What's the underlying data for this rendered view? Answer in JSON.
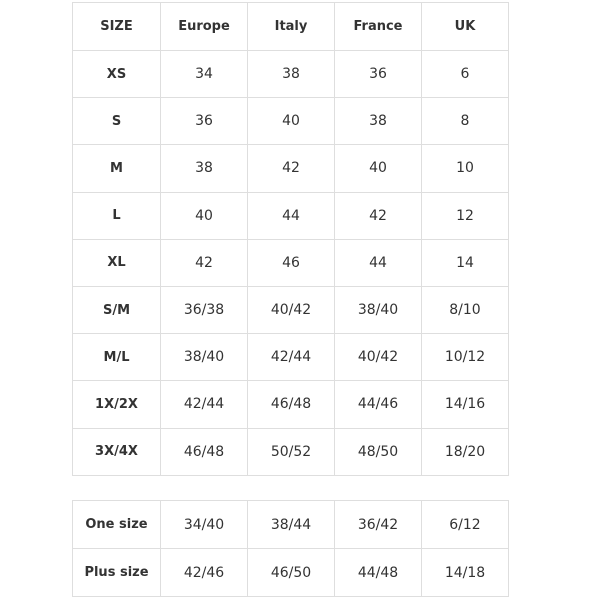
{
  "size_table": {
    "header": [
      "SIZE",
      "Europe",
      "Italy",
      "France",
      "UK"
    ],
    "rows": [
      [
        "XS",
        "34",
        "38",
        "36",
        "6"
      ],
      [
        "S",
        "36",
        "40",
        "38",
        "8"
      ],
      [
        "M",
        "38",
        "42",
        "40",
        "10"
      ],
      [
        "L",
        "40",
        "44",
        "42",
        "12"
      ],
      [
        "XL",
        "42",
        "46",
        "44",
        "14"
      ],
      [
        "S/M",
        "36/38",
        "40/42",
        "38/40",
        "8/10"
      ],
      [
        "M/L",
        "38/40",
        "42/44",
        "40/42",
        "10/12"
      ],
      [
        "1X/2X",
        "42/44",
        "46/48",
        "44/46",
        "14/16"
      ],
      [
        "3X/4X",
        "46/48",
        "50/52",
        "48/50",
        "18/20"
      ]
    ]
  },
  "extra_table": {
    "rows": [
      [
        "One size",
        "34/40",
        "38/44",
        "36/42",
        "6/12"
      ],
      [
        "Plus size",
        "42/46",
        "46/50",
        "44/48",
        "14/18"
      ]
    ]
  }
}
